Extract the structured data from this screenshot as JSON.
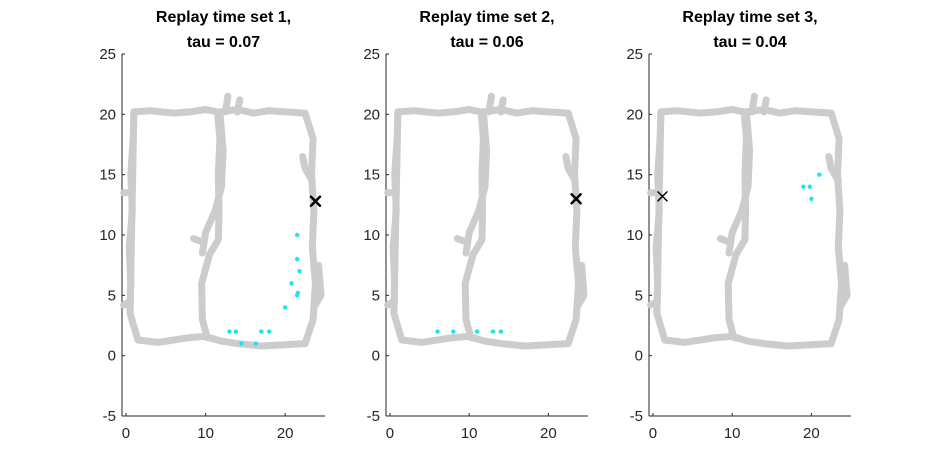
{
  "colors": {
    "track": "#cccccc",
    "replay_points": "#1fe3f0",
    "position_marker": "#000000",
    "axis": "#262626"
  },
  "chart_data": [
    {
      "type": "scatter",
      "title_line1": "Replay time set 1,",
      "title_line2": "tau = 0.07",
      "xlim": [
        -0.5,
        25
      ],
      "ylim": [
        -5,
        25
      ],
      "xticks": [
        0,
        10,
        20
      ],
      "yticks": [
        -5,
        0,
        5,
        10,
        15,
        20,
        25
      ],
      "replay_points": [
        [
          13,
          2
        ],
        [
          13.8,
          2
        ],
        [
          14.5,
          1
        ],
        [
          16.3,
          1
        ],
        [
          17,
          2
        ],
        [
          18,
          2
        ],
        [
          21.5,
          10
        ],
        [
          21.5,
          8
        ],
        [
          21.8,
          7
        ],
        [
          20.8,
          6
        ],
        [
          21.5,
          5
        ],
        [
          21.6,
          5.2
        ],
        [
          20,
          4
        ]
      ],
      "marker": {
        "symbol": "x",
        "x": 23.8,
        "y": 12.8
      }
    },
    {
      "type": "scatter",
      "title_line1": "Replay time set 2,",
      "title_line2": "tau = 0.06",
      "xlim": [
        -0.5,
        25
      ],
      "ylim": [
        -5,
        25
      ],
      "xticks": [
        0,
        10,
        20
      ],
      "yticks": [
        -5,
        0,
        5,
        10,
        15,
        20,
        25
      ],
      "replay_points": [
        [
          6,
          2
        ],
        [
          8,
          2
        ],
        [
          11,
          2
        ],
        [
          13,
          2
        ],
        [
          14,
          2
        ]
      ],
      "marker": {
        "symbol": "x",
        "x": 23.5,
        "y": 13
      }
    },
    {
      "type": "scatter",
      "title_line1": "Replay time set 3,",
      "title_line2": "tau = 0.04",
      "xlim": [
        -0.5,
        25
      ],
      "ylim": [
        -5,
        25
      ],
      "xticks": [
        0,
        10,
        20
      ],
      "yticks": [
        -5,
        0,
        5,
        10,
        15,
        20,
        25
      ],
      "replay_points": [
        [
          19,
          14
        ],
        [
          19.8,
          14
        ],
        [
          20,
          13
        ],
        [
          21,
          15
        ]
      ],
      "marker": {
        "symbol": "x",
        "x": 1.2,
        "y": 13.2
      }
    }
  ]
}
